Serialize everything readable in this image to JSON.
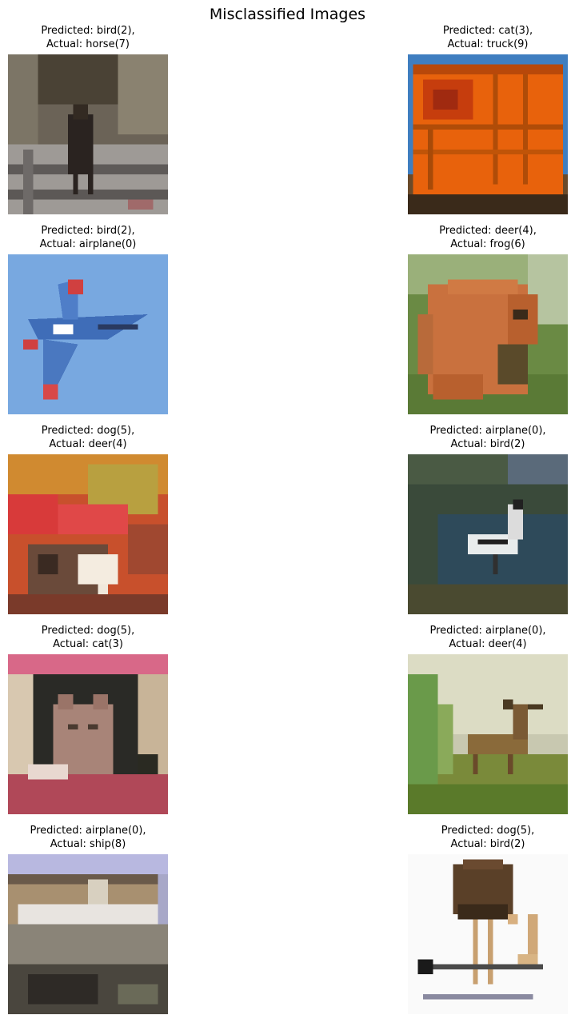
{
  "figure": {
    "title": "Misclassified Images"
  },
  "images": [
    {
      "predicted": "Predicted: bird(2),",
      "actual": "Actual: horse(7)",
      "subject": "horse-photo"
    },
    {
      "predicted": "Predicted: cat(3),",
      "actual": "Actual: truck(9)",
      "subject": "truck-photo"
    },
    {
      "predicted": "Predicted: bird(2),",
      "actual": "Actual: airplane(0)",
      "subject": "airplane-photo"
    },
    {
      "predicted": "Predicted: deer(4),",
      "actual": "Actual: frog(6)",
      "subject": "frog-photo"
    },
    {
      "predicted": "Predicted: dog(5),",
      "actual": "Actual: deer(4)",
      "subject": "deer-photo"
    },
    {
      "predicted": "Predicted: airplane(0),",
      "actual": "Actual: bird(2)",
      "subject": "bird-photo"
    },
    {
      "predicted": "Predicted: dog(5),",
      "actual": "Actual: cat(3)",
      "subject": "cat-photo"
    },
    {
      "predicted": "Predicted: airplane(0),",
      "actual": "Actual: deer(4)",
      "subject": "deer-photo"
    },
    {
      "predicted": "Predicted: airplane(0),",
      "actual": "Actual: ship(8)",
      "subject": "ship-photo"
    },
    {
      "predicted": "Predicted: dog(5),",
      "actual": "Actual: bird(2)",
      "subject": "bird-photo"
    }
  ]
}
